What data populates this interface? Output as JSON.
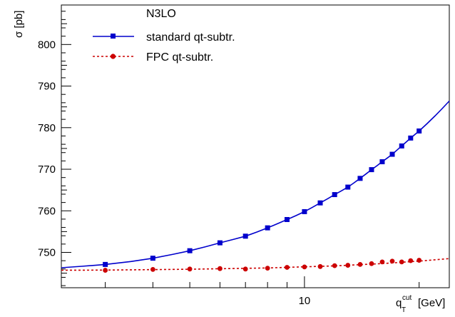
{
  "chart_data": {
    "type": "line",
    "ylabel": "σ [pb]",
    "xlabel_main": "q",
    "xlabel_sup": "cut",
    "xlabel_sub": "T",
    "xlabel_unit": "[GeV]",
    "xscale": "log",
    "xlim": [
      2.3,
      24
    ],
    "ylim": [
      741.5,
      809.5
    ],
    "x_ticks": [
      {
        "value": 10,
        "label": "10"
      }
    ],
    "y_ticks": [
      750,
      760,
      770,
      780,
      790,
      800
    ],
    "legend": {
      "title": "N3LO",
      "position": "top-left",
      "entries": [
        "standard qt-subtr.",
        "FPC qt-subtr."
      ]
    },
    "series": [
      {
        "name": "standard qt-subtr.",
        "color": "#0000cc",
        "line_style": "solid",
        "marker": "square",
        "x": [
          3,
          4,
          5,
          6,
          7,
          8,
          9,
          10,
          11,
          12,
          13,
          14,
          15,
          16,
          17,
          18,
          19,
          20
        ],
        "y": [
          747.1,
          748.6,
          750.4,
          752.3,
          753.9,
          755.9,
          757.9,
          759.8,
          761.9,
          763.9,
          765.7,
          767.8,
          769.9,
          771.8,
          773.6,
          775.6,
          777.5,
          779.2
        ],
        "curve_x": [
          2.3,
          2.6,
          3,
          3.5,
          4,
          4.5,
          5,
          5.5,
          6,
          6.5,
          7,
          7.5,
          8,
          8.5,
          9,
          9.5,
          10,
          10.5,
          11,
          11.5,
          12,
          12.5,
          13,
          13.5,
          14,
          14.5,
          15,
          15.5,
          16,
          16.5,
          17,
          17.5,
          18,
          18.5,
          19,
          19.5,
          20,
          21,
          22,
          23,
          24
        ],
        "curve_y": [
          746.3,
          746.65,
          747.1,
          747.8,
          748.6,
          749.5,
          750.4,
          751.35,
          752.3,
          753.1,
          753.9,
          754.9,
          755.9,
          756.9,
          757.9,
          758.85,
          759.8,
          760.85,
          761.9,
          762.9,
          763.9,
          764.8,
          765.7,
          766.75,
          767.8,
          768.85,
          769.9,
          770.85,
          771.8,
          772.7,
          773.6,
          774.6,
          775.6,
          776.55,
          777.5,
          778.35,
          779.2,
          781.0,
          782.8,
          784.6,
          786.4
        ]
      },
      {
        "name": "FPC qt-subtr.",
        "color": "#cc0000",
        "line_style": "dashed",
        "marker": "circle",
        "x": [
          3,
          4,
          5,
          6,
          7,
          8,
          9,
          10,
          11,
          12,
          13,
          14,
          15,
          16,
          17,
          18,
          19,
          20
        ],
        "y": [
          745.7,
          745.9,
          746.0,
          746.1,
          746.0,
          746.2,
          746.4,
          746.5,
          746.6,
          746.8,
          746.9,
          747.1,
          747.3,
          747.7,
          747.9,
          747.7,
          748.0,
          748.1
        ],
        "curve_x": [
          2.3,
          3,
          5,
          8,
          12,
          16,
          20,
          24
        ],
        "curve_y": [
          745.7,
          745.75,
          745.95,
          746.25,
          746.75,
          747.3,
          747.9,
          748.5
        ]
      }
    ]
  }
}
